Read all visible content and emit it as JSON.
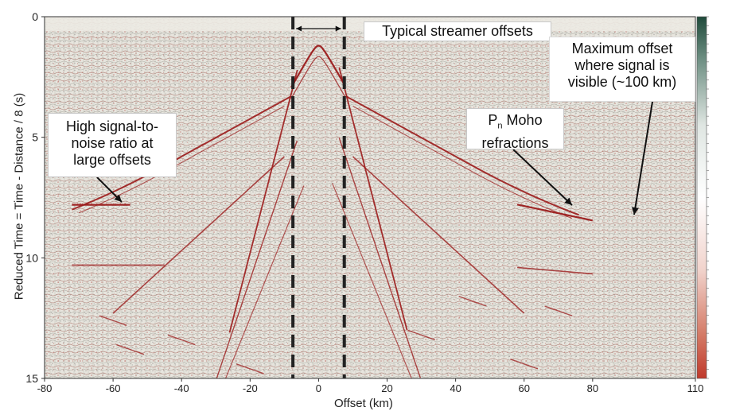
{
  "chart_data": {
    "type": "heatmap",
    "title": "",
    "xlabel": "Offset (km)",
    "ylabel": "Reduced Time = Time - Distance / 8 (s)",
    "xlim": [
      -80,
      110
    ],
    "ylim": [
      15,
      0
    ],
    "x_ticks": [
      -80,
      -60,
      -40,
      -20,
      0,
      20,
      40,
      60,
      80,
      110
    ],
    "y_ticks": [
      0,
      5,
      10,
      15
    ],
    "grid": false,
    "colorbar": {
      "position": "right",
      "colors": [
        "#1f4a3a",
        "#ffffff",
        "#c0392b"
      ]
    },
    "streamer_offset_lines": [
      -7.5,
      7.5
    ],
    "moho_refraction_t": 8,
    "max_signal_offset_km": 100,
    "annotations": [
      {
        "text": "Typical streamer offsets",
        "x_range": [
          -7.5,
          7.5
        ],
        "y": 0.5
      },
      {
        "text": "High signal-to-noise ratio at large offsets",
        "x": -58,
        "y": 7.8
      },
      {
        "text": "Pn Moho refractions",
        "x": 67,
        "y": 8
      },
      {
        "text": "Maximum offset where signal is visible (~100 km)",
        "x": 84,
        "y": 8.3
      }
    ]
  },
  "labels": {
    "streamer": "Typical streamer offsets",
    "snr": [
      "High signal-to-",
      "noise ratio at",
      "large offsets"
    ],
    "pn_main": "P",
    "pn_sub": "n",
    "pn_rest": " Moho",
    "pn_line2": "refractions",
    "maxoff": [
      "Maximum offset",
      "where signal is",
      "visible (~100 km)"
    ]
  },
  "colors": {
    "wavelet": "#9b1b1b",
    "background": "#e6e4dc",
    "dashed": "#222222"
  }
}
